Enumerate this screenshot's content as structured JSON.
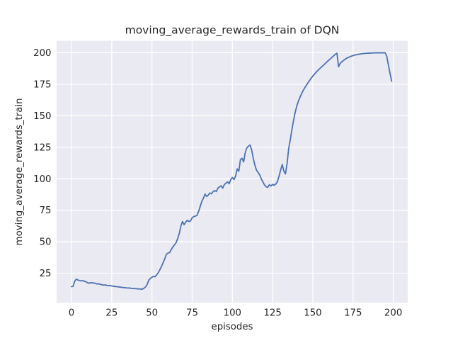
{
  "chart_data": {
    "type": "line",
    "title": "moving_average_rewards_train of DQN",
    "xlabel": "episodes",
    "ylabel": "moving_average_rewards_train",
    "grid": true,
    "legend_position": "none",
    "xticks": [
      0,
      25,
      50,
      75,
      100,
      125,
      150,
      175,
      200
    ],
    "yticks": [
      25,
      50,
      75,
      100,
      125,
      150,
      175,
      200
    ],
    "xlim": [
      -9.24,
      208.97
    ],
    "ylim": [
      1.55,
      209.45
    ],
    "styles": {
      "figure_bg": "#ffffff",
      "axes_bg": "#eaeaf2",
      "grid_color": "#ffffff",
      "text_color": "#262626",
      "line_color": "#4c72b0",
      "line_width": 1.8,
      "grid_width": 1.3
    },
    "series": [
      {
        "name": "DQN",
        "color": "#4c72b0",
        "x": [
          0,
          1,
          2,
          3,
          4,
          5,
          6,
          7,
          8,
          9,
          10,
          11,
          12,
          13,
          14,
          15,
          16,
          17,
          18,
          19,
          20,
          21,
          22,
          23,
          24,
          25,
          26,
          27,
          28,
          29,
          30,
          31,
          32,
          33,
          34,
          35,
          36,
          37,
          38,
          39,
          40,
          41,
          42,
          43,
          44,
          45,
          46,
          47,
          48,
          49,
          50,
          51,
          52,
          53,
          54,
          55,
          56,
          57,
          58,
          59,
          60,
          61,
          62,
          63,
          64,
          65,
          66,
          67,
          68,
          69,
          70,
          71,
          72,
          73,
          74,
          75,
          76,
          77,
          78,
          79,
          80,
          81,
          82,
          83,
          84,
          85,
          86,
          87,
          88,
          89,
          90,
          91,
          92,
          93,
          94,
          95,
          96,
          97,
          98,
          99,
          100,
          101,
          102,
          103,
          104,
          105,
          106,
          107,
          108,
          109,
          110,
          111,
          112,
          113,
          114,
          115,
          116,
          117,
          118,
          119,
          120,
          121,
          122,
          123,
          124,
          125,
          126,
          127,
          128,
          129,
          130,
          131,
          132,
          133,
          134,
          135,
          136,
          137,
          138,
          139,
          140,
          141,
          142,
          143,
          144,
          145,
          146,
          147,
          148,
          149,
          150,
          151,
          152,
          153,
          154,
          155,
          156,
          157,
          158,
          159,
          160,
          161,
          162,
          163,
          164,
          165,
          166,
          167,
          168,
          169,
          170,
          171,
          172,
          173,
          174,
          175,
          176,
          177,
          178,
          179,
          180,
          181,
          182,
          183,
          184,
          185,
          186,
          187,
          188,
          189,
          190,
          191,
          192,
          193,
          194,
          195,
          196,
          197,
          198,
          199
        ],
        "y": [
          14.3,
          14.6,
          18.6,
          20.3,
          19.6,
          19.2,
          18.9,
          19.1,
          18.6,
          18.2,
          17.4,
          17.0,
          17.6,
          17.2,
          17.3,
          16.8,
          16.4,
          16.6,
          16.1,
          15.9,
          15.5,
          15.7,
          15.3,
          15.1,
          15.3,
          14.9,
          14.7,
          14.5,
          14.3,
          14.2,
          14.0,
          13.8,
          13.7,
          13.5,
          13.4,
          13.2,
          13.3,
          13.0,
          12.9,
          12.8,
          12.7,
          12.6,
          12.5,
          12.4,
          12.3,
          13.0,
          14.0,
          16.0,
          19.4,
          20.8,
          21.8,
          22.5,
          22.2,
          23.8,
          25.5,
          28.0,
          30.5,
          33.5,
          36.5,
          40.0,
          41.0,
          41.4,
          43.8,
          45.8,
          47.5,
          49.2,
          52.5,
          56.5,
          62.5,
          66.0,
          63.5,
          65.5,
          67.0,
          66.0,
          66.5,
          69.0,
          70.0,
          70.3,
          70.9,
          74.0,
          78.0,
          82.0,
          84.5,
          87.8,
          85.9,
          87.0,
          88.7,
          88.0,
          89.7,
          90.6,
          89.8,
          92.5,
          93.5,
          94.4,
          92.5,
          95.3,
          96.5,
          97.5,
          96.0,
          99.3,
          101.0,
          99.3,
          102.1,
          107.8,
          105.9,
          115.2,
          116.2,
          113.3,
          120.8,
          124.5,
          125.8,
          126.8,
          122.7,
          116.1,
          110.8,
          106.7,
          105.0,
          103.0,
          99.8,
          97.4,
          95.0,
          93.6,
          93.1,
          95.3,
          94.2,
          95.5,
          94.8,
          95.8,
          97.8,
          102.0,
          107.0,
          111.3,
          106.0,
          103.8,
          112.0,
          124.0,
          131.0,
          139.0,
          146.0,
          152.5,
          157.5,
          161.5,
          164.5,
          167.5,
          170.0,
          172.2,
          174.2,
          176.2,
          178.0,
          179.8,
          181.5,
          183.0,
          184.4,
          185.8,
          187.0,
          188.2,
          189.4,
          190.6,
          191.8,
          193.0,
          194.2,
          195.3,
          196.5,
          197.6,
          198.8,
          199.6,
          188.9,
          191.5,
          192.8,
          193.8,
          194.8,
          195.6,
          196.2,
          196.8,
          197.3,
          197.7,
          198.1,
          198.4,
          198.7,
          198.9,
          199.1,
          199.3,
          199.4,
          199.5,
          199.6,
          199.7,
          199.7,
          199.8,
          199.8,
          199.9,
          199.9,
          199.9,
          199.9,
          199.9,
          199.9,
          199.9,
          197.0,
          190.0,
          183.5,
          177.4
        ]
      }
    ]
  }
}
